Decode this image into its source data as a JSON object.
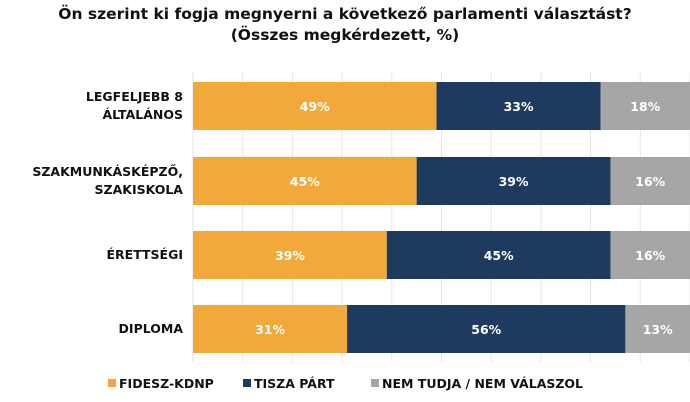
{
  "chart_data": {
    "type": "bar",
    "stacked": true,
    "orientation": "horizontal",
    "title": "Ön szerint ki fogja megnyerni a következő parlamenti választást?",
    "subtitle": "(Összes megkérdezett, %)",
    "categories": [
      [
        "LEGFELJEBB 8",
        "ÁLTALÁNOS"
      ],
      [
        "SZAKMUNKÁSKÉPZŐ,",
        "SZAKISKOLA"
      ],
      [
        "ÉRETTSÉGI"
      ],
      [
        "DIPLOMA"
      ]
    ],
    "series": [
      {
        "name": "FIDESZ-KDNP",
        "color": "#F2A93B",
        "values": [
          49,
          45,
          39,
          31
        ]
      },
      {
        "name": "TISZA PÁRT",
        "color": "#1F3A5F",
        "values": [
          33,
          39,
          45,
          56
        ]
      },
      {
        "name": "NEM TUDJA / NEM VÁLASZOL",
        "color": "#A6A6A6",
        "values": [
          18,
          16,
          16,
          13
        ]
      }
    ],
    "xlim": [
      0,
      100
    ],
    "value_suffix": "%",
    "grid": true,
    "legend": "bottom"
  }
}
